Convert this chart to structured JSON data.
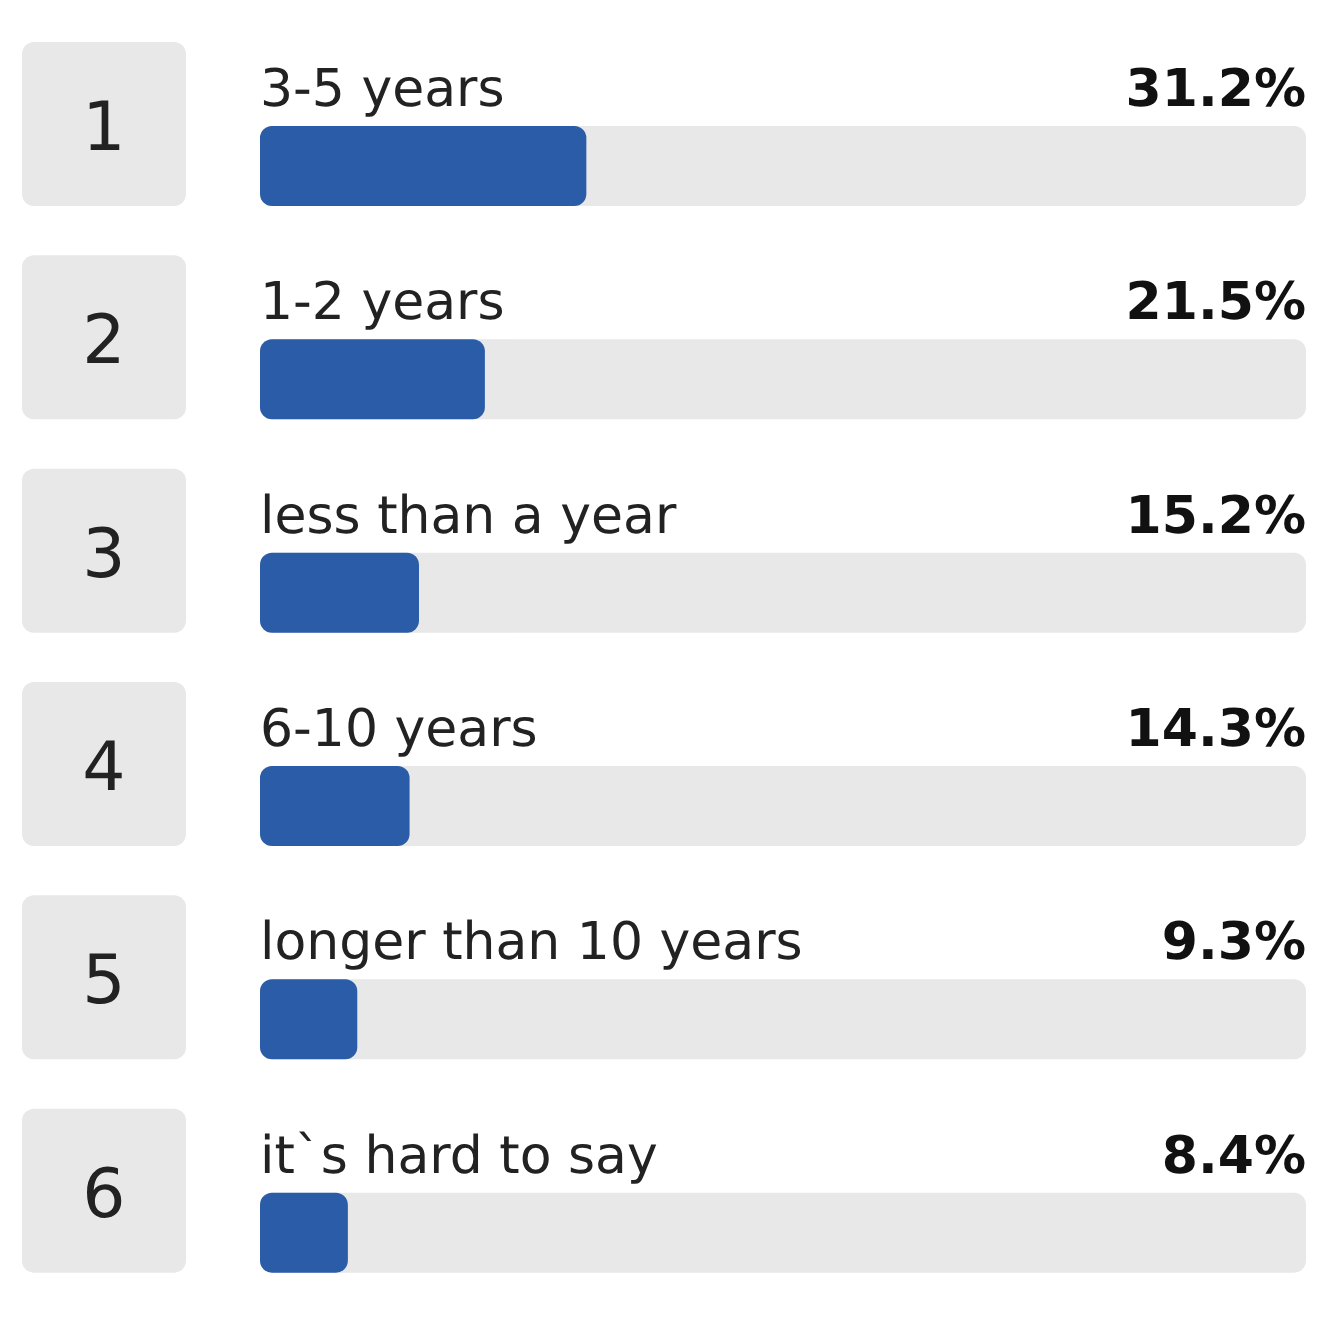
{
  "chart_data": {
    "type": "bar",
    "orientation": "horizontal",
    "categories": [
      "3-5 years",
      "1-2 years",
      "less than a year",
      "6-10 years",
      "longer than 10 years",
      "it`s hard to say"
    ],
    "values": [
      31.2,
      21.5,
      15.2,
      14.3,
      9.3,
      8.4
    ],
    "value_labels": [
      "31.2%",
      "21.5%",
      "15.2%",
      "14.3%",
      "9.3%",
      "8.4%"
    ],
    "color": "#2b5ca8",
    "xlim": [
      0,
      100
    ],
    "annotations": [
      "1",
      "2",
      "3",
      "4",
      "5",
      "6"
    ]
  }
}
